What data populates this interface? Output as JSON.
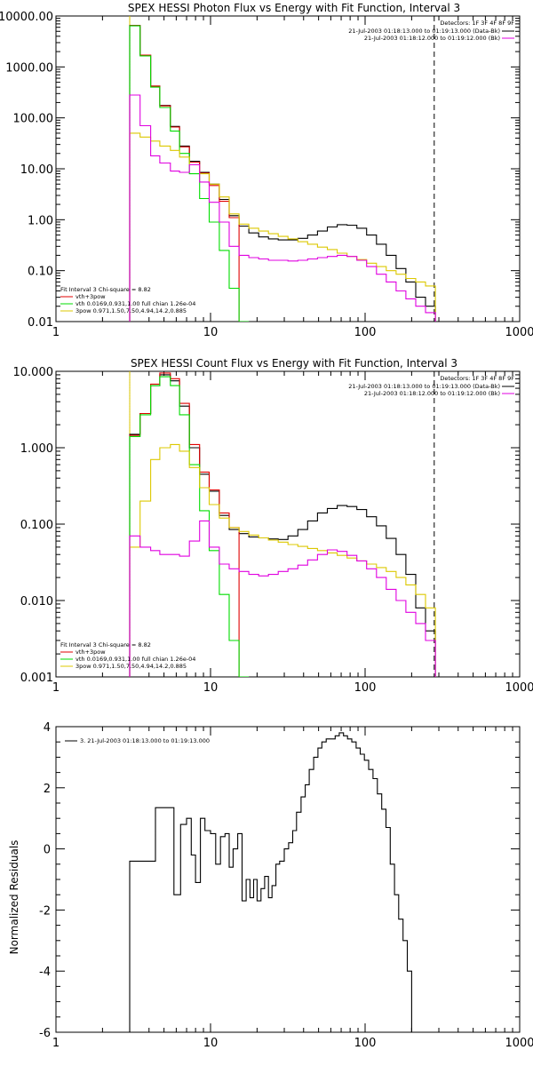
{
  "chart_data": [
    {
      "type": "line",
      "title": "SPEX HESSI Photon Flux vs Energy with Fit Function, Interval 3",
      "xlabel": "",
      "ylabel": "",
      "xscale": "log",
      "yscale": "log",
      "xlim": [
        1,
        1000
      ],
      "ylim": [
        0.01,
        10000
      ],
      "x_ticks": [
        "1",
        "10",
        "100",
        "1000"
      ],
      "y_ticks": [
        "10000.00",
        "1000.00",
        "100.00",
        "10.00",
        "1.00",
        "0.10",
        "0.01"
      ],
      "x_edges": [
        3.0,
        3.5,
        4.1,
        4.7,
        5.5,
        6.3,
        7.3,
        8.5,
        9.8,
        11.4,
        13.2,
        15.3,
        17.7,
        20.5,
        23.7,
        27.4,
        31.7,
        36.7,
        42.5,
        49.2,
        57.0,
        66.0,
        76.4,
        88.4,
        102.3,
        118.4,
        137.0,
        158.6,
        183.6,
        212.5,
        246.0,
        284.7
      ],
      "vlines": [
        {
          "x": 3.0,
          "style": "dotted",
          "color": "#000000"
        },
        {
          "x": 3.0,
          "style": "solid",
          "color": "#DCC800"
        },
        {
          "x": 280,
          "style": "dashed",
          "color": "#000000"
        }
      ],
      "series": [
        {
          "name": "",
          "color": "#000000",
          "values": [
            6500,
            1700,
            420,
            175,
            68,
            28,
            14,
            8.5,
            5.0,
            2.5,
            1.2,
            0.75,
            0.55,
            0.46,
            0.42,
            0.4,
            0.4,
            0.43,
            0.5,
            0.6,
            0.72,
            0.8,
            0.78,
            0.68,
            0.5,
            0.33,
            0.2,
            0.11,
            0.06,
            0.03,
            0.02
          ]
        },
        {
          "name": "",
          "color": "#E00000",
          "values": [
            6500,
            1700,
            420,
            172,
            66,
            27,
            13.5,
            8.2,
            4.7,
            2.3,
            1.1
          ]
        },
        {
          "name": "",
          "color": "#00DD00",
          "values": [
            6400,
            1650,
            400,
            160,
            55,
            20,
            8,
            2.6,
            0.9,
            0.25,
            0.045,
            0.005
          ]
        },
        {
          "name": "",
          "color": "#DCC800",
          "values": [
            50,
            42,
            35,
            28,
            23,
            17,
            12,
            8,
            5,
            2.8,
            1.3,
            0.82,
            0.68,
            0.6,
            0.53,
            0.47,
            0.42,
            0.37,
            0.33,
            0.29,
            0.26,
            0.22,
            0.19,
            0.165,
            0.14,
            0.12,
            0.1,
            0.085,
            0.07,
            0.06,
            0.05
          ]
        },
        {
          "name": "",
          "color": "#E000E0",
          "values": [
            280,
            70,
            18,
            13,
            9,
            8.5,
            12,
            5.5,
            2.2,
            0.9,
            0.3,
            0.2,
            0.18,
            0.17,
            0.16,
            0.16,
            0.155,
            0.16,
            0.17,
            0.18,
            0.19,
            0.2,
            0.19,
            0.16,
            0.12,
            0.085,
            0.06,
            0.04,
            0.028,
            0.02,
            0.015
          ]
        }
      ],
      "legend_top": {
        "line1": "Detectors: 1F 3F 4F 8F 9F",
        "items": [
          {
            "label": "21-Jul-2003 01:18:13.000 to 01:19:13.000 (Data-Bk)",
            "color": "#000000"
          },
          {
            "label": "21-Jul-2003 01:18:12.000 to 01:19:12.000 (Bk)",
            "color": "#E000E0"
          }
        ]
      },
      "legend_bottom": {
        "header": "Fit Interval 3   Chi-square = 8.82",
        "items": [
          {
            "label": "vth+3pow",
            "color": "#E00000"
          },
          {
            "label": "vth 0.0169,0.931,1.00  full chian 1.26e-04",
            "color": "#00DD00"
          },
          {
            "label": "3pow 0.971,1.50,7.50,4.94,14.2,0.885",
            "color": "#DCC800"
          }
        ]
      }
    },
    {
      "type": "line",
      "title": "SPEX HESSI Count Flux vs Energy with Fit Function, Interval 3",
      "xlabel": "",
      "ylabel": "",
      "xscale": "log",
      "yscale": "log",
      "xlim": [
        1,
        1000
      ],
      "ylim": [
        0.001,
        10
      ],
      "x_ticks": [
        "1",
        "10",
        "100",
        "1000"
      ],
      "y_ticks": [
        "10.000",
        "1.000",
        "0.100",
        "0.010",
        "0.001"
      ],
      "x_edges": [
        3.0,
        3.5,
        4.1,
        4.7,
        5.5,
        6.3,
        7.3,
        8.5,
        9.8,
        11.4,
        13.2,
        15.3,
        17.7,
        20.5,
        23.7,
        27.4,
        31.7,
        36.7,
        42.5,
        49.2,
        57.0,
        66.0,
        76.4,
        88.4,
        102.3,
        118.4,
        137.0,
        158.6,
        183.6,
        212.5,
        246.0,
        284.7
      ],
      "vlines": [
        {
          "x": 3.0,
          "style": "dotted",
          "color": "#000000"
        },
        {
          "x": 3.0,
          "style": "solid",
          "color": "#DCC800"
        },
        {
          "x": 280,
          "style": "dashed",
          "color": "#000000"
        }
      ],
      "series": [
        {
          "name": "",
          "color": "#000000",
          "values": [
            1.5,
            2.8,
            6.5,
            9.0,
            7.5,
            3.5,
            1.0,
            0.45,
            0.27,
            0.13,
            0.085,
            0.075,
            0.068,
            0.066,
            0.064,
            0.063,
            0.07,
            0.085,
            0.11,
            0.14,
            0.16,
            0.175,
            0.17,
            0.155,
            0.125,
            0.095,
            0.065,
            0.04,
            0.022,
            0.008,
            0.004
          ]
        },
        {
          "name": "",
          "color": "#E00000",
          "values": [
            1.45,
            2.8,
            6.8,
            9.5,
            8.0,
            3.8,
            1.1,
            0.48,
            0.28,
            0.14,
            0.09
          ]
        },
        {
          "name": "",
          "color": "#00DD00",
          "values": [
            1.4,
            2.7,
            6.5,
            8.5,
            6.5,
            2.7,
            0.6,
            0.15,
            0.045,
            0.012,
            0.003,
            0.001
          ]
        },
        {
          "name": "",
          "color": "#DCC800",
          "values": [
            0.05,
            0.2,
            0.7,
            1.0,
            1.1,
            0.9,
            0.55,
            0.3,
            0.18,
            0.12,
            0.09,
            0.08,
            0.072,
            0.066,
            0.062,
            0.058,
            0.054,
            0.051,
            0.048,
            0.045,
            0.042,
            0.039,
            0.036,
            0.033,
            0.03,
            0.027,
            0.024,
            0.02,
            0.016,
            0.012,
            0.008
          ]
        },
        {
          "name": "",
          "color": "#E000E0",
          "values": [
            0.07,
            0.05,
            0.045,
            0.04,
            0.04,
            0.038,
            0.06,
            0.11,
            0.05,
            0.03,
            0.026,
            0.024,
            0.022,
            0.021,
            0.022,
            0.024,
            0.026,
            0.029,
            0.034,
            0.04,
            0.046,
            0.044,
            0.039,
            0.033,
            0.026,
            0.02,
            0.014,
            0.01,
            0.007,
            0.005,
            0.003
          ]
        }
      ],
      "legend_top": {
        "line1": "Detectors: 1F 3F 4F 8F 9F",
        "items": [
          {
            "label": "21-Jul-2003 01:18:13.000 to 01:19:13.000 (Data-Bk)",
            "color": "#000000"
          },
          {
            "label": "21-Jul-2003 01:18:12.000 to 01:19:12.000 (Bk)",
            "color": "#E000E0"
          }
        ]
      },
      "legend_bottom": {
        "header": "Fit Interval 3   Chi-square = 8.82",
        "items": [
          {
            "label": "vth+3pow",
            "color": "#E00000"
          },
          {
            "label": "vth 0.0169,0.931,1.00  full chian 1.26e-04",
            "color": "#00DD00"
          },
          {
            "label": "3pow 0.971,1.50,7.50,4.94,14.2,0.885",
            "color": "#DCC800"
          }
        ]
      }
    },
    {
      "type": "line",
      "title": "",
      "xlabel": "",
      "ylabel": "Normalized Residuals",
      "xscale": "log",
      "yscale": "linear",
      "xlim": [
        1,
        1000
      ],
      "ylim": [
        -6,
        4
      ],
      "x_ticks": [
        "1",
        "10",
        "100",
        "1000"
      ],
      "y_ticks": [
        "4",
        "2",
        "0",
        "-2",
        "-4",
        "-6"
      ],
      "x_edges": [
        3.0,
        3.6,
        4.4,
        5.2,
        5.8,
        6.4,
        7.0,
        7.5,
        8.0,
        8.6,
        9.2,
        10.0,
        10.8,
        11.6,
        12.4,
        13.2,
        14.0,
        15.0,
        16.0,
        17.0,
        18.0,
        19.0,
        20.0,
        21.2,
        22.4,
        23.7,
        25.0,
        26.5,
        28.0,
        30.0,
        32.0,
        34.0,
        36.0,
        38.5,
        41.0,
        43.5,
        46.5,
        49.5,
        52.5,
        56.0,
        60.0,
        64.0,
        68.0,
        72.5,
        77.0,
        82.0,
        87.5,
        93.0,
        99.0,
        105.5,
        112.5,
        120.0,
        128.0,
        136.5,
        145.5,
        155.0,
        165.0,
        176.0,
        187.5,
        200.0,
        213.0,
        227.0,
        242.0,
        258.0,
        275.0
      ],
      "vlines": [],
      "series": [
        {
          "name": "",
          "color": "#000000",
          "values": [
            -0.4,
            -0.4,
            1.35,
            1.35,
            -1.5,
            0.8,
            1.0,
            -0.2,
            -1.1,
            1.0,
            0.6,
            0.5,
            -0.5,
            0.4,
            0.5,
            -0.6,
            0.0,
            0.5,
            -1.7,
            -1.0,
            -1.6,
            -1.0,
            -1.7,
            -1.3,
            -0.9,
            -1.6,
            -1.2,
            -0.5,
            -0.4,
            0.0,
            0.2,
            0.6,
            1.2,
            1.7,
            2.1,
            2.6,
            3.0,
            3.3,
            3.5,
            3.6,
            3.6,
            3.7,
            3.8,
            3.7,
            3.6,
            3.5,
            3.3,
            3.1,
            2.9,
            2.6,
            2.3,
            1.8,
            1.3,
            0.7,
            -0.5,
            -1.5,
            -2.3,
            -3.0,
            -4.0,
            -6.0,
            -6.0,
            -6.0,
            -6.0,
            -6.0
          ]
        }
      ],
      "legend_top": {
        "line1": "",
        "items": [
          {
            "label": "3. 21-Jul-2003 01:18:13.000 to 01:19:13.000",
            "color": "#000000"
          }
        ]
      },
      "legend_bottom": null
    }
  ]
}
